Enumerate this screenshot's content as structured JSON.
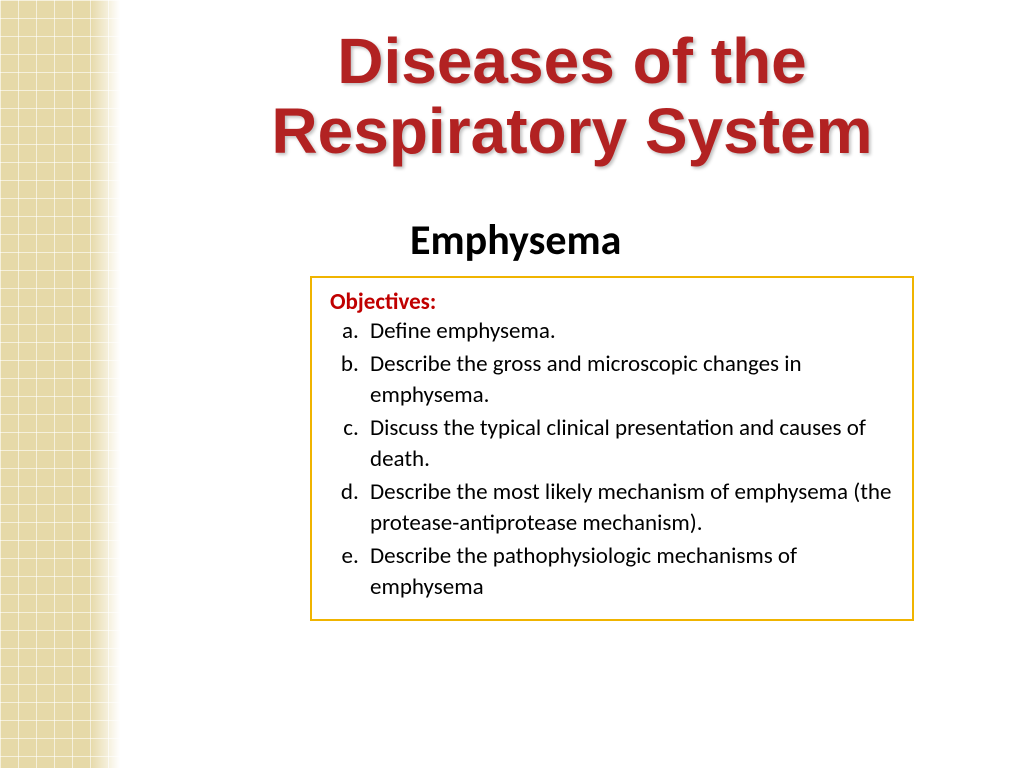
{
  "title": "Diseases of the Respiratory System",
  "subtitle": "Emphysema",
  "objectives": {
    "label": "Objectives:",
    "items": [
      "Define emphysema.",
      "Describe the gross and microscopic changes in emphysema.",
      "Discuss the typical clinical presentation and causes of death.",
      "Describe the most likely mechanism of emphysema (the protease-antiprotease mechanism).",
      "Describe the pathophysiologic mechanisms of emphysema"
    ]
  },
  "styling": {
    "title_color": "#b22222",
    "title_fontsize": 64,
    "subtitle_fontsize": 42,
    "objectives_label_color": "#c00000",
    "objectives_fontsize": 23,
    "border_color": "#f0b400",
    "pattern_color": "#e6d9a8",
    "background": "#ffffff"
  }
}
